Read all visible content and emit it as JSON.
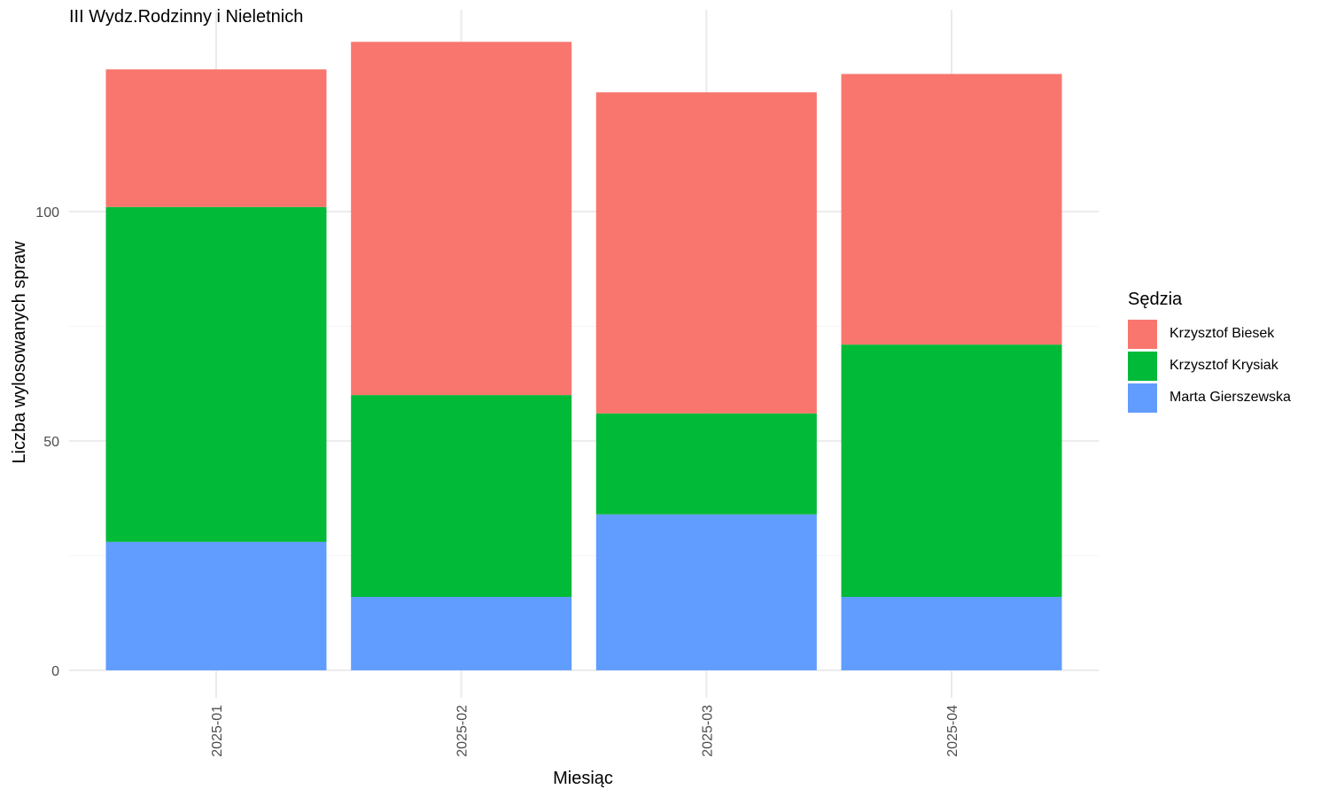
{
  "chart_data": {
    "type": "bar",
    "stacked": true,
    "title": "III Wydz.Rodzinny i Nieletnich",
    "xlabel": "Miesiąc",
    "ylabel": "Liczba wylosowanych spraw",
    "categories": [
      "2025-01",
      "2025-02",
      "2025-03",
      "2025-04"
    ],
    "series": [
      {
        "name": "Marta Gierszewska",
        "color": "#619CFF",
        "values": [
          28,
          16,
          34,
          16
        ]
      },
      {
        "name": "Krzysztof Krysiak",
        "color": "#00BA38",
        "values": [
          73,
          44,
          22,
          55
        ]
      },
      {
        "name": "Krzysztof Biesek",
        "color": "#F8766D",
        "values": [
          30,
          77,
          70,
          59
        ]
      }
    ],
    "yticks": [
      0,
      50,
      100
    ],
    "ylim": [
      -6,
      144
    ],
    "grid": true,
    "legend": {
      "title": "Sędzia",
      "position": "right",
      "order": [
        "Krzysztof Biesek",
        "Krzysztof Krysiak",
        "Marta Gierszewska"
      ]
    }
  }
}
